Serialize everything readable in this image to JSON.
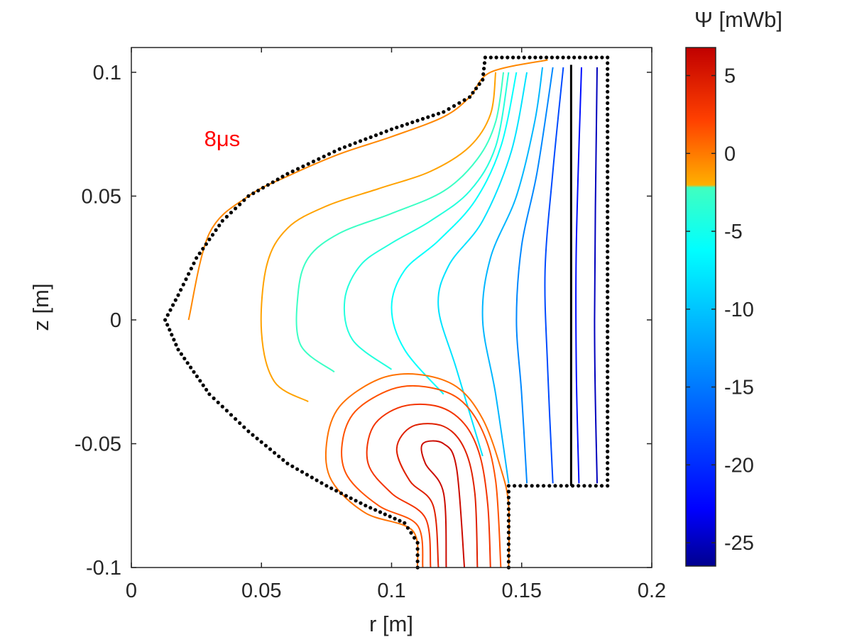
{
  "chart_data": {
    "type": "contour",
    "xlabel": "r [m]",
    "ylabel": "z [m]",
    "xlim": [
      0,
      0.2
    ],
    "ylim": [
      -0.1,
      0.11
    ],
    "xticks": [
      0,
      0.05,
      0.1,
      0.15,
      0.2
    ],
    "xtick_labels": [
      "0",
      "0.05",
      "0.1",
      "0.15",
      "0.2"
    ],
    "yticks": [
      -0.1,
      -0.05,
      0,
      0.05,
      0.1
    ],
    "ytick_labels": [
      "-0.1",
      "-0.05",
      "0",
      "0.05",
      "0.1"
    ],
    "annotation": "8μs",
    "annotation_pos": [
      0.028,
      0.073
    ],
    "colorbar": {
      "title": "Ψ [mWb]",
      "range": [
        -26.5,
        6.8
      ],
      "ticks": [
        5,
        0,
        -5,
        -10,
        -15,
        -20,
        -25
      ],
      "tick_labels": [
        "5",
        "0",
        "-5",
        "-10",
        "-15",
        "-20",
        "-25"
      ]
    },
    "boundary": [
      [
        0.145,
        -0.1
      ],
      [
        0.145,
        -0.067
      ],
      [
        0.183,
        -0.067
      ],
      [
        0.183,
        0.106
      ],
      [
        0.136,
        0.106
      ],
      [
        0.135,
        0.097
      ],
      [
        0.13,
        0.09
      ],
      [
        0.12,
        0.084
      ],
      [
        0.1,
        0.077
      ],
      [
        0.08,
        0.069
      ],
      [
        0.06,
        0.059
      ],
      [
        0.045,
        0.05
      ],
      [
        0.035,
        0.04
      ],
      [
        0.025,
        0.025
      ],
      [
        0.018,
        0.01
      ],
      [
        0.013,
        0
      ],
      [
        0.018,
        -0.012
      ],
      [
        0.03,
        -0.03
      ],
      [
        0.045,
        -0.045
      ],
      [
        0.06,
        -0.058
      ],
      [
        0.075,
        -0.067
      ],
      [
        0.09,
        -0.075
      ],
      [
        0.105,
        -0.082
      ],
      [
        0.11,
        -0.09
      ],
      [
        0.11,
        -0.1
      ]
    ],
    "inner_wall": [
      [
        0.169,
        -0.067
      ],
      [
        0.169,
        0.103
      ]
    ],
    "psi_contours": {
      "negative": [
        {
          "value": -0.5,
          "points": [
            [
              0.022,
              0
            ],
            [
              0.03,
              0.035
            ],
            [
              0.045,
              0.05
            ],
            [
              0.06,
              0.058
            ],
            [
              0.08,
              0.067
            ],
            [
              0.1,
              0.074
            ],
            [
              0.12,
              0.082
            ],
            [
              0.13,
              0.09
            ],
            [
              0.138,
              0.1
            ],
            [
              0.16,
              0.105
            ]
          ]
        },
        {
          "value": -1.5,
          "points": [
            [
              0.068,
              -0.033
            ],
            [
              0.055,
              -0.025
            ],
            [
              0.05,
              -0.005
            ],
            [
              0.052,
              0.022
            ],
            [
              0.06,
              0.037
            ],
            [
              0.075,
              0.046
            ],
            [
              0.095,
              0.053
            ],
            [
              0.115,
              0.06
            ],
            [
              0.13,
              0.07
            ],
            [
              0.138,
              0.083
            ],
            [
              0.14,
              0.1
            ]
          ]
        },
        {
          "value": -2.5,
          "points": [
            [
              0.078,
              -0.021
            ],
            [
              0.065,
              -0.01
            ],
            [
              0.064,
              0.01
            ],
            [
              0.068,
              0.025
            ],
            [
              0.08,
              0.035
            ],
            [
              0.1,
              0.043
            ],
            [
              0.12,
              0.052
            ],
            [
              0.133,
              0.065
            ],
            [
              0.14,
              0.08
            ],
            [
              0.143,
              0.1
            ]
          ]
        },
        {
          "value": -4,
          "points": [
            [
              0.1,
              -0.02
            ],
            [
              0.085,
              -0.008
            ],
            [
              0.082,
              0.008
            ],
            [
              0.088,
              0.022
            ],
            [
              0.1,
              0.031
            ],
            [
              0.115,
              0.04
            ],
            [
              0.13,
              0.052
            ],
            [
              0.14,
              0.07
            ],
            [
              0.145,
              0.1
            ]
          ]
        },
        {
          "value": -6,
          "points": [
            [
              0.12,
              -0.03
            ],
            [
              0.105,
              -0.012
            ],
            [
              0.1,
              0.005
            ],
            [
              0.105,
              0.02
            ],
            [
              0.118,
              0.032
            ],
            [
              0.132,
              0.048
            ],
            [
              0.142,
              0.07
            ],
            [
              0.148,
              0.1
            ]
          ]
        },
        {
          "value": -8,
          "points": [
            [
              0.135,
              -0.055
            ],
            [
              0.125,
              -0.02
            ],
            [
              0.118,
              0.005
            ],
            [
              0.122,
              0.022
            ],
            [
              0.135,
              0.04
            ],
            [
              0.146,
              0.068
            ],
            [
              0.152,
              0.1
            ]
          ]
        },
        {
          "value": -11,
          "points": [
            [
              0.145,
              -0.066
            ],
            [
              0.14,
              -0.03
            ],
            [
              0.135,
              0.0
            ],
            [
              0.138,
              0.025
            ],
            [
              0.148,
              0.05
            ],
            [
              0.155,
              0.08
            ],
            [
              0.158,
              0.102
            ]
          ]
        },
        {
          "value": -14,
          "points": [
            [
              0.152,
              -0.066
            ],
            [
              0.15,
              -0.03
            ],
            [
              0.148,
              0.0
            ],
            [
              0.15,
              0.03
            ],
            [
              0.156,
              0.06
            ],
            [
              0.162,
              0.102
            ]
          ]
        },
        {
          "value": -18,
          "points": [
            [
              0.162,
              -0.066
            ],
            [
              0.16,
              -0.02
            ],
            [
              0.159,
              0.02
            ],
            [
              0.162,
              0.06
            ],
            [
              0.166,
              0.102
            ]
          ]
        },
        {
          "value": -22,
          "points": [
            [
              0.172,
              -0.066
            ],
            [
              0.171,
              -0.02
            ],
            [
              0.171,
              0.03
            ],
            [
              0.173,
              0.102
            ]
          ]
        },
        {
          "value": -25,
          "points": [
            [
              0.179,
              -0.066
            ],
            [
              0.178,
              0.0
            ],
            [
              0.179,
              0.102
            ]
          ]
        }
      ],
      "positive": [
        {
          "value": 0.3,
          "points": [
            [
              0.11,
              -0.1
            ],
            [
              0.108,
              -0.085
            ],
            [
              0.09,
              -0.078
            ],
            [
              0.077,
              -0.065
            ],
            [
              0.075,
              -0.05
            ],
            [
              0.08,
              -0.035
            ],
            [
              0.095,
              -0.024
            ],
            [
              0.11,
              -0.022
            ],
            [
              0.125,
              -0.027
            ],
            [
              0.135,
              -0.04
            ],
            [
              0.142,
              -0.06
            ],
            [
              0.145,
              -0.075
            ],
            [
              0.145,
              -0.1
            ]
          ]
        },
        {
          "value": 1.5,
          "points": [
            [
              0.112,
              -0.1
            ],
            [
              0.11,
              -0.083
            ],
            [
              0.095,
              -0.075
            ],
            [
              0.083,
              -0.063
            ],
            [
              0.081,
              -0.05
            ],
            [
              0.086,
              -0.037
            ],
            [
              0.1,
              -0.028
            ],
            [
              0.113,
              -0.027
            ],
            [
              0.126,
              -0.032
            ],
            [
              0.135,
              -0.045
            ],
            [
              0.14,
              -0.065
            ],
            [
              0.142,
              -0.1
            ]
          ]
        },
        {
          "value": 3,
          "points": [
            [
              0.115,
              -0.1
            ],
            [
              0.113,
              -0.08
            ],
            [
              0.1,
              -0.07
            ],
            [
              0.091,
              -0.058
            ],
            [
              0.093,
              -0.043
            ],
            [
              0.104,
              -0.035
            ],
            [
              0.118,
              -0.035
            ],
            [
              0.128,
              -0.042
            ],
            [
              0.134,
              -0.055
            ],
            [
              0.137,
              -0.075
            ],
            [
              0.138,
              -0.1
            ]
          ]
        },
        {
          "value": 4.5,
          "points": [
            [
              0.118,
              -0.1
            ],
            [
              0.116,
              -0.075
            ],
            [
              0.107,
              -0.065
            ],
            [
              0.102,
              -0.052
            ],
            [
              0.108,
              -0.043
            ],
            [
              0.12,
              -0.043
            ],
            [
              0.128,
              -0.052
            ],
            [
              0.132,
              -0.07
            ],
            [
              0.133,
              -0.1
            ]
          ]
        },
        {
          "value": 6,
          "points": [
            [
              0.121,
              -0.1
            ],
            [
              0.12,
              -0.07
            ],
            [
              0.113,
              -0.058
            ],
            [
              0.112,
              -0.05
            ],
            [
              0.12,
              -0.05
            ],
            [
              0.125,
              -0.06
            ],
            [
              0.128,
              -0.1
            ]
          ]
        }
      ]
    }
  }
}
